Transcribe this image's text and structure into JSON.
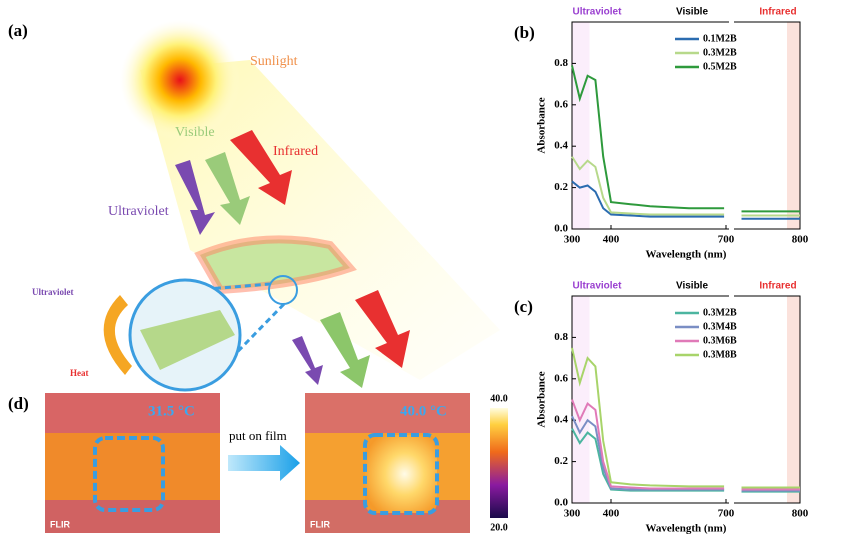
{
  "illustration": {
    "label": "(a)",
    "sunlight": "Sunlight",
    "visible": "Visible",
    "infrared": "Infrared",
    "ultraviolet": "Ultraviolet",
    "inset_ultraviolet": "Ultraviolet",
    "inset_heat": "Heat"
  },
  "thermal": {
    "label": "(d)",
    "before": "31.5 °C",
    "after": "40.0 °C",
    "action": "put on film",
    "brand": [
      "FLIR",
      "FLIR"
    ],
    "colorbar_max": "40.0",
    "colorbar_min": "20.0"
  },
  "chart_data": [
    {
      "type": "line",
      "label": "(b)",
      "xlabel": "Wavelength (nm)",
      "ylabel": "Absorbance",
      "regions": [
        "Ultraviolet",
        "Visible",
        "Infrared"
      ],
      "xsegments": [
        [
          300,
          700
        ],
        [
          700,
          800
        ]
      ],
      "xticks": [
        300,
        400,
        700,
        800
      ],
      "ylim": [
        0,
        1.0
      ],
      "yticks": [
        {
          "value": 0,
          "label": "0.0"
        },
        0.2,
        0.4,
        0.6,
        0.8
      ],
      "x": [
        300,
        320,
        340,
        360,
        380,
        400,
        450,
        500,
        600,
        690,
        700,
        710,
        750,
        800
      ],
      "series": [
        {
          "name": "0.1M2B",
          "color": "#2b6cb0",
          "values": [
            0.23,
            0.2,
            0.21,
            0.18,
            0.1,
            0.07,
            0.065,
            0.06,
            0.06,
            0.06,
            null,
            0.05,
            0.05,
            0.05
          ]
        },
        {
          "name": "0.3M2B",
          "color": "#b7d98b",
          "values": [
            0.35,
            0.29,
            0.33,
            0.3,
            0.15,
            0.08,
            0.075,
            0.07,
            0.07,
            0.07,
            null,
            0.065,
            0.065,
            0.065
          ]
        },
        {
          "name": "0.5M2B",
          "color": "#2e9a3c",
          "values": [
            0.79,
            0.63,
            0.74,
            0.72,
            0.35,
            0.13,
            0.12,
            0.11,
            0.1,
            0.1,
            null,
            0.085,
            0.085,
            0.085
          ]
        }
      ]
    },
    {
      "type": "line",
      "label": "(c)",
      "xlabel": "Wavelength (nm)",
      "ylabel": "Absorbance",
      "regions": [
        "Ultraviolet",
        "Visible",
        "Infrared"
      ],
      "xsegments": [
        [
          300,
          700
        ],
        [
          700,
          800
        ]
      ],
      "xticks": [
        300,
        400,
        700,
        800
      ],
      "ylim": [
        0,
        1.0
      ],
      "yticks": [
        {
          "value": 0,
          "label": "0.0"
        },
        0.2,
        0.4,
        0.6,
        0.8
      ],
      "x": [
        300,
        320,
        340,
        360,
        380,
        400,
        450,
        500,
        600,
        690,
        700,
        710,
        750,
        800
      ],
      "series": [
        {
          "name": "0.3M2B",
          "color": "#4cb5a0",
          "values": [
            0.36,
            0.29,
            0.34,
            0.31,
            0.14,
            0.065,
            0.06,
            0.06,
            0.06,
            0.06,
            null,
            0.055,
            0.055,
            0.055
          ]
        },
        {
          "name": "0.3M4B",
          "color": "#7a8ec4",
          "values": [
            0.42,
            0.34,
            0.4,
            0.37,
            0.17,
            0.07,
            0.065,
            0.065,
            0.065,
            0.065,
            null,
            0.06,
            0.06,
            0.06
          ]
        },
        {
          "name": "0.3M6B",
          "color": "#e07ab8",
          "values": [
            0.5,
            0.4,
            0.48,
            0.45,
            0.2,
            0.08,
            0.075,
            0.07,
            0.07,
            0.07,
            null,
            0.065,
            0.065,
            0.065
          ]
        },
        {
          "name": "0.3M8B",
          "color": "#a8d46a",
          "values": [
            0.75,
            0.58,
            0.7,
            0.66,
            0.3,
            0.1,
            0.09,
            0.085,
            0.08,
            0.08,
            null,
            0.075,
            0.075,
            0.075
          ]
        }
      ]
    }
  ]
}
